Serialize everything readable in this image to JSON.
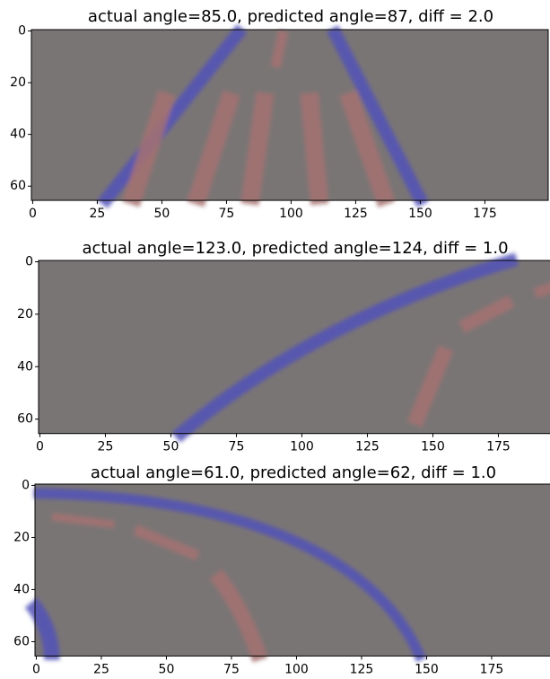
{
  "chart_data": [
    {
      "type": "image",
      "title": "actual angle=85.0, predicted angle=87, diff = 2.0",
      "xlim": [
        -0.5,
        199.5
      ],
      "ylim": [
        65.5,
        -0.5
      ],
      "xticks": [
        0,
        25,
        50,
        75,
        100,
        125,
        150,
        175
      ],
      "yticks": [
        0,
        20,
        40,
        60
      ]
    },
    {
      "type": "image",
      "title": "actual angle=123.0, predicted angle=124, diff = 1.0",
      "xlim": [
        -0.5,
        199.5
      ],
      "ylim": [
        65.5,
        -0.5
      ],
      "xticks": [
        0,
        25,
        50,
        75,
        100,
        125,
        150,
        175
      ],
      "yticks": [
        0,
        20,
        40,
        60
      ]
    },
    {
      "type": "image",
      "title": "actual angle=61.0, predicted angle=62, diff = 1.0",
      "xlim": [
        -0.5,
        199.5
      ],
      "ylim": [
        65.5,
        -0.5
      ],
      "xticks": [
        0,
        25,
        50,
        75,
        100,
        125,
        150,
        175
      ],
      "yticks": [
        0,
        20,
        40,
        60
      ]
    }
  ]
}
